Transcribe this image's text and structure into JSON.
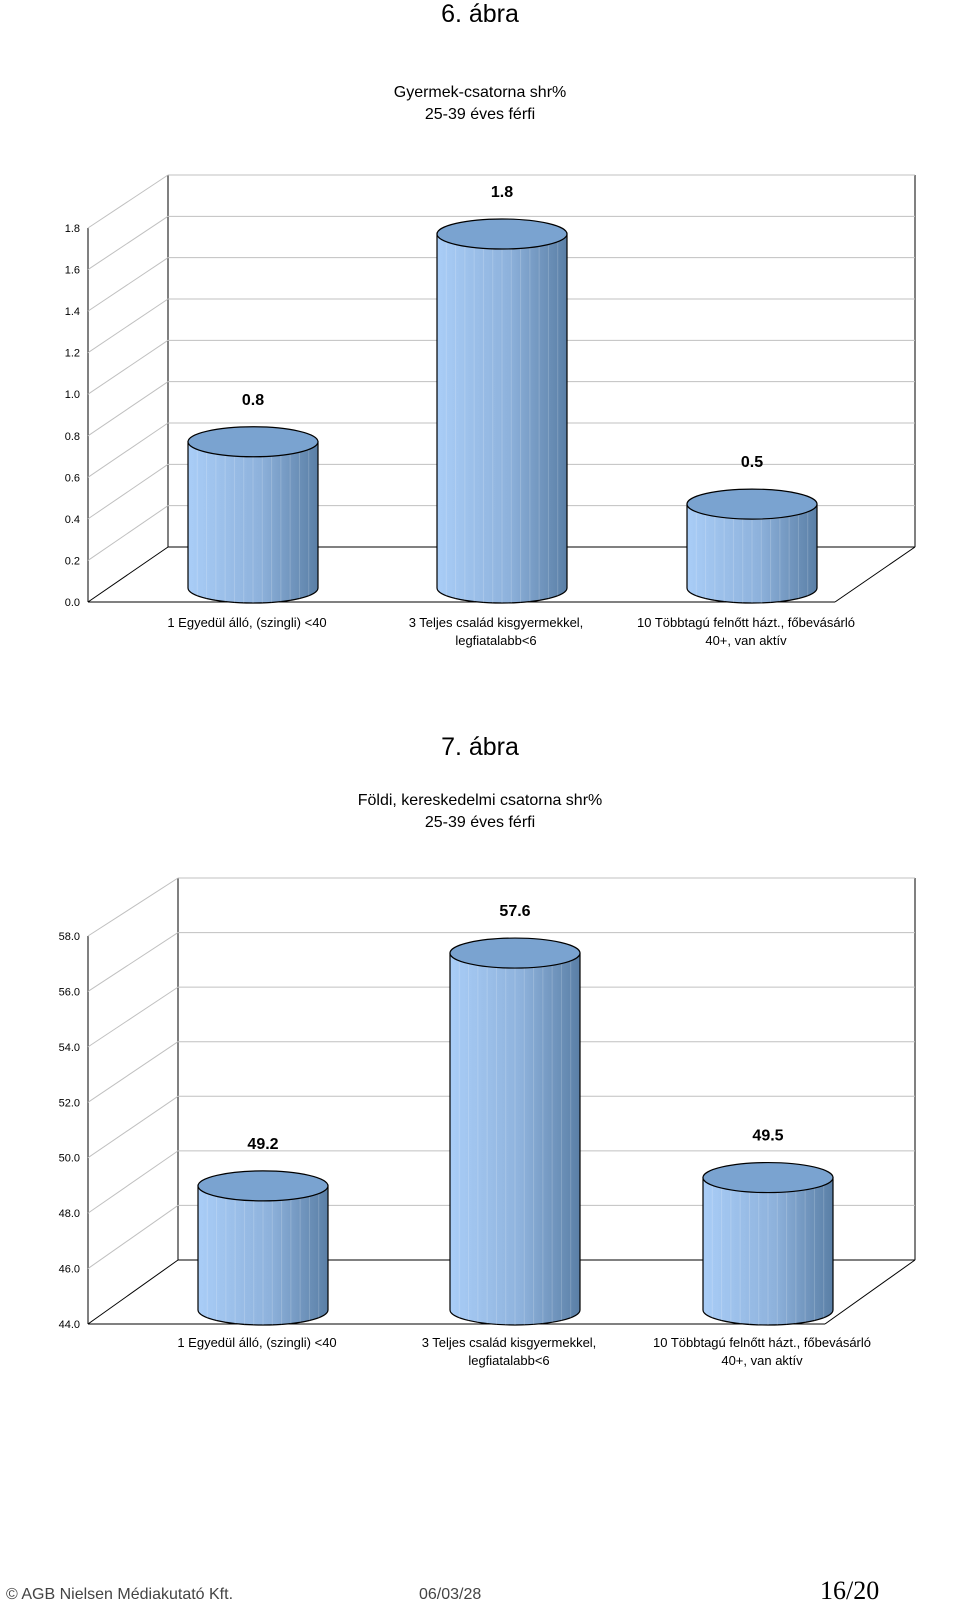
{
  "page": {
    "footer_company": "© AGB Nielsen Médiakutató Kft.",
    "footer_date": "06/03/28",
    "footer_page": "16/20"
  },
  "figures": [
    {
      "heading": "6. ábra",
      "title_line1": "Gyermek-csatorna shr%",
      "title_line2": "25-39 éves férfi"
    },
    {
      "heading": "7. ábra",
      "title_line1": "Földi, kereskedelmi csatorna shr%",
      "title_line2": "25-39 éves férfi"
    }
  ],
  "colors": {
    "bar_light": "#a9cdf7",
    "bar_dark": "#5a7fa6",
    "bar_top": "#7aa3d0",
    "grid": "#c0c0c0"
  },
  "chart_data": [
    {
      "type": "bar",
      "title": "Gyermek-csatorna shr% 25-39 éves férfi",
      "categories": [
        [
          "1 Egyedül álló, (szingli) <40"
        ],
        [
          "3 Teljes család kisgyermekkel,",
          "legfiatalabb<6"
        ],
        [
          "10 Többtagú felnőtt házt., főbevásárló",
          "40+, van aktív"
        ]
      ],
      "values": [
        0.8,
        1.8,
        0.5
      ],
      "value_labels": [
        "0.8",
        "1.8",
        "0.5"
      ],
      "ylim": [
        0,
        1.8
      ],
      "yticks": [
        "0.0",
        "0.2",
        "0.4",
        "0.6",
        "0.8",
        "1.0",
        "1.2",
        "1.4",
        "1.6",
        "1.8"
      ],
      "ystart": 0,
      "ystep": 0.2,
      "grid": true,
      "xlabel": "",
      "ylabel": ""
    },
    {
      "type": "bar",
      "title": "Földi, kereskedelmi csatorna shr% 25-39 éves férfi",
      "categories": [
        [
          "1 Egyedül álló, (szingli) <40"
        ],
        [
          "3 Teljes család kisgyermekkel,",
          "legfiatalabb<6"
        ],
        [
          "10 Többtagú felnőtt házt., főbevásárló",
          "40+, van aktív"
        ]
      ],
      "values": [
        49.2,
        57.6,
        49.5
      ],
      "value_labels": [
        "49.2",
        "57.6",
        "49.5"
      ],
      "ylim": [
        44,
        58
      ],
      "yticks": [
        "44.0",
        "46.0",
        "48.0",
        "50.0",
        "52.0",
        "54.0",
        "56.0",
        "58.0"
      ],
      "ystart": 44,
      "ystep": 2,
      "grid": true,
      "xlabel": "",
      "ylabel": ""
    }
  ]
}
